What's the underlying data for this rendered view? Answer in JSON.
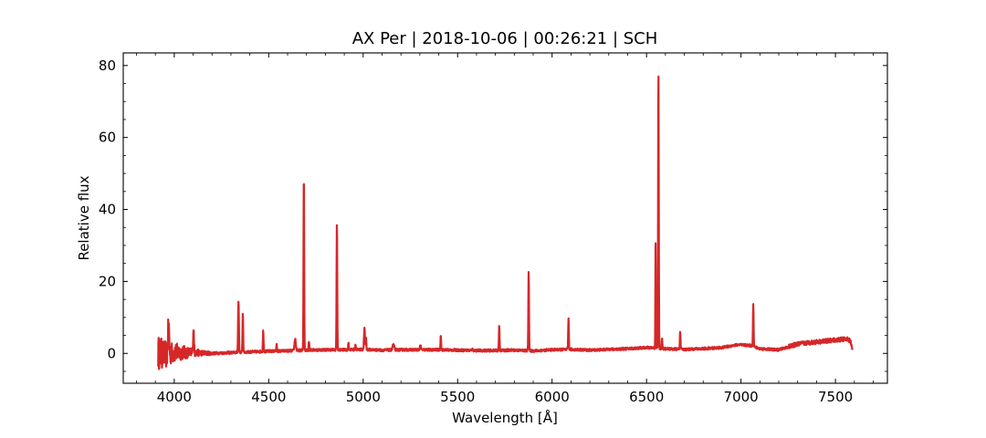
{
  "chart_data": {
    "type": "line",
    "title": "AX Per | 2018-10-06 | 00:26:21 | SCH",
    "xlabel": "Wavelength [Å]",
    "ylabel": "Relative flux",
    "xlim": [
      3730,
      7775
    ],
    "ylim": [
      -8.3,
      83.5
    ],
    "xticks": [
      4000,
      4500,
      5000,
      5500,
      6000,
      6500,
      7000,
      7500
    ],
    "yticks": [
      0,
      20,
      40,
      60,
      80
    ],
    "grid": false,
    "line_color": "#d62728",
    "series": [
      {
        "continuum": [
          [
            3915,
            0.2
          ],
          [
            3960,
            -0.4
          ],
          [
            4000,
            0.3
          ],
          [
            4100,
            0.2
          ],
          [
            4200,
            0.0
          ],
          [
            4300,
            0.2
          ],
          [
            4400,
            0.4
          ],
          [
            4500,
            0.6
          ],
          [
            4600,
            0.7
          ],
          [
            4700,
            0.9
          ],
          [
            4800,
            1.0
          ],
          [
            4900,
            1.0
          ],
          [
            5000,
            1.1
          ],
          [
            5100,
            0.9
          ],
          [
            5200,
            1.0
          ],
          [
            5300,
            1.0
          ],
          [
            5400,
            1.0
          ],
          [
            5500,
            0.9
          ],
          [
            5600,
            0.8
          ],
          [
            5700,
            0.8
          ],
          [
            5800,
            0.9
          ],
          [
            5900,
            0.7
          ],
          [
            6000,
            1.0
          ],
          [
            6100,
            1.1
          ],
          [
            6200,
            0.9
          ],
          [
            6300,
            1.1
          ],
          [
            6400,
            1.3
          ],
          [
            6500,
            1.6
          ],
          [
            6600,
            1.3
          ],
          [
            6700,
            1.1
          ],
          [
            6800,
            1.3
          ],
          [
            6900,
            1.6
          ],
          [
            6980,
            2.4
          ],
          [
            7050,
            2.2
          ],
          [
            7100,
            1.3
          ],
          [
            7200,
            1.0
          ],
          [
            7300,
            2.6
          ],
          [
            7400,
            3.2
          ],
          [
            7500,
            3.7
          ],
          [
            7560,
            4.0
          ],
          [
            7580,
            3.5
          ],
          [
            7590,
            0.6
          ]
        ],
        "lines": [
          [
            3970,
            7.5,
            8
          ],
          [
            4102,
            7.0,
            5
          ],
          [
            4340,
            14.5,
            5
          ],
          [
            4363,
            11.2,
            4
          ],
          [
            4471,
            6.3,
            4
          ],
          [
            4542,
            2.5,
            4
          ],
          [
            4640,
            4.0,
            8
          ],
          [
            4686,
            50.0,
            4
          ],
          [
            4713,
            3.5,
            4
          ],
          [
            4861,
            36.8,
            4
          ],
          [
            4922,
            3.0,
            4
          ],
          [
            4959,
            2.6,
            4
          ],
          [
            5007,
            6.8,
            6
          ],
          [
            5015,
            4.5,
            4
          ],
          [
            5160,
            2.5,
            10
          ],
          [
            5303,
            2.3,
            6
          ],
          [
            5411,
            5.0,
            4
          ],
          [
            5577,
            1.5,
            4
          ],
          [
            5720,
            7.6,
            4
          ],
          [
            5876,
            23.0,
            4
          ],
          [
            6087,
            9.8,
            4
          ],
          [
            6300,
            1.5,
            4
          ],
          [
            6548,
            31.0,
            3
          ],
          [
            6563,
            79.2,
            4
          ],
          [
            6582,
            4.0,
            4
          ],
          [
            6678,
            6.2,
            4
          ],
          [
            7065,
            13.5,
            4
          ]
        ],
        "noise_region": [
          3910,
          4250
        ]
      }
    ]
  }
}
